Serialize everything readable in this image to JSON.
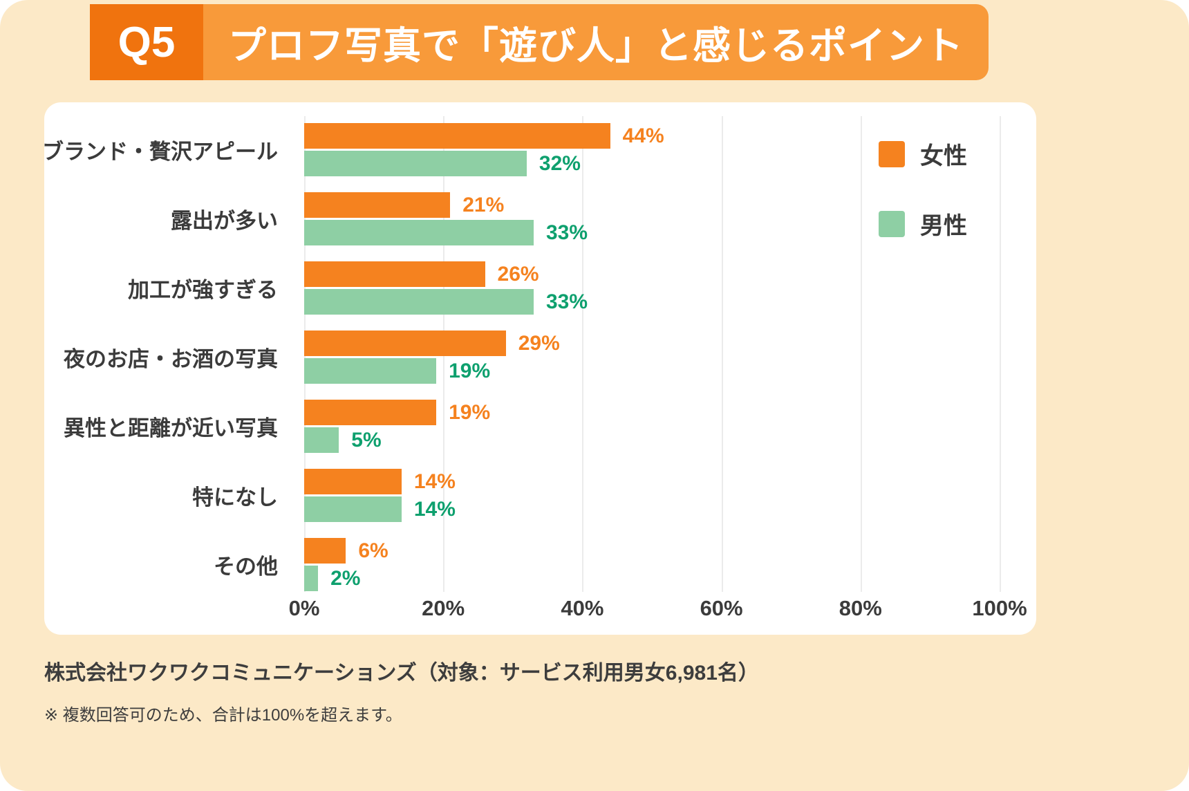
{
  "header": {
    "badge": "Q5",
    "title": "プロフ写真で「遊び人」と感じるポイント"
  },
  "legend": [
    {
      "label": "女性",
      "color": "#f5821f"
    },
    {
      "label": "男性",
      "color": "#8ecfa4"
    }
  ],
  "chart_data": {
    "type": "bar",
    "orientation": "horizontal",
    "title": "プロフ写真で「遊び人」と感じるポイント",
    "categories": [
      "ブランド・贅沢アピール",
      "露出が多い",
      "加工が強すぎる",
      "夜のお店・お酒の写真",
      "異性と距離が近い写真",
      "特になし",
      "その他"
    ],
    "series": [
      {
        "name": "女性",
        "color": "#f5821f",
        "label_color": "#f5821f",
        "values": [
          44,
          21,
          26,
          29,
          19,
          14,
          6
        ]
      },
      {
        "name": "男性",
        "color": "#8ecfa4",
        "label_color": "#0ea06e",
        "values": [
          32,
          33,
          33,
          19,
          5,
          14,
          2
        ]
      }
    ],
    "x_ticks": [
      "0%",
      "20%",
      "40%",
      "60%",
      "80%",
      "100%"
    ],
    "xlim": [
      0,
      100
    ],
    "grid": true,
    "legend_position": "top-right",
    "value_suffix": "%"
  },
  "footer": {
    "source": "株式会社ワクワクコミュニケーションズ（対象：サービス利用男女6,981名）",
    "note": "※ 複数回答可のため、合計は100%を超えます。"
  }
}
